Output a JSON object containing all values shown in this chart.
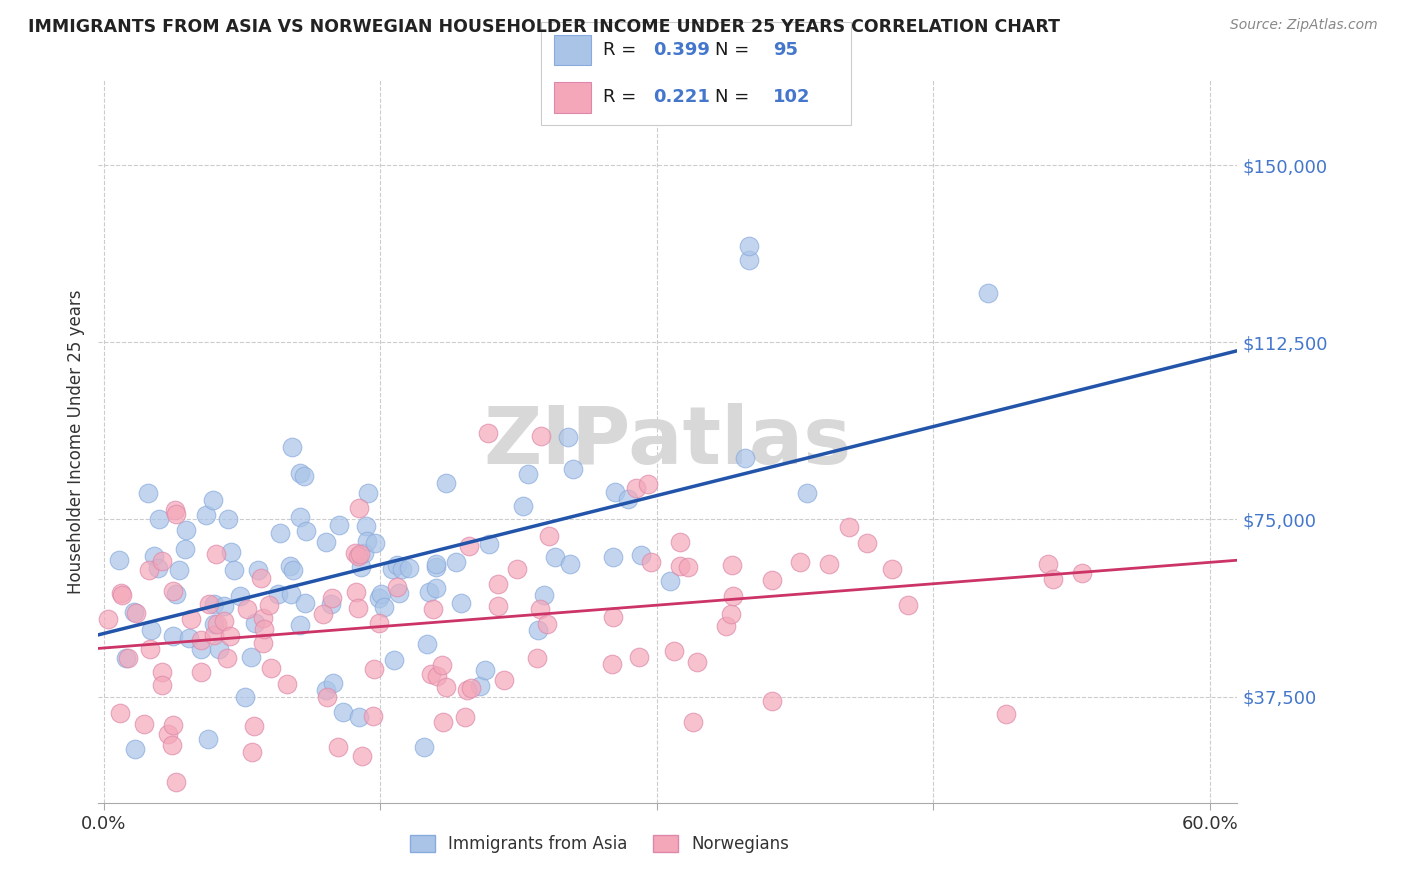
{
  "title": "IMMIGRANTS FROM ASIA VS NORWEGIAN HOUSEHOLDER INCOME UNDER 25 YEARS CORRELATION CHART",
  "source": "Source: ZipAtlas.com",
  "ylabel": "Householder Income Under 25 years",
  "ytick_labels": [
    "$37,500",
    "$75,000",
    "$112,500",
    "$150,000"
  ],
  "ytick_values": [
    37500,
    75000,
    112500,
    150000
  ],
  "ylim": [
    15000,
    168000
  ],
  "xlim": [
    -0.003,
    0.615
  ],
  "blue_R": "0.399",
  "blue_N": "95",
  "pink_R": "0.221",
  "pink_N": "102",
  "blue_dot_color": "#aac4e8",
  "pink_dot_color": "#f4a7b9",
  "blue_line_color": "#2255aa",
  "pink_line_color": "#cc3366",
  "ytick_color": "#4477cc",
  "legend_label_blue": "Immigrants from Asia",
  "legend_label_pink": "Norwegians",
  "blue_intercept": 55000,
  "blue_slope": 35000,
  "pink_intercept": 50000,
  "pink_slope": 18000,
  "seed": 42,
  "n_blue": 95,
  "n_pink": 102
}
